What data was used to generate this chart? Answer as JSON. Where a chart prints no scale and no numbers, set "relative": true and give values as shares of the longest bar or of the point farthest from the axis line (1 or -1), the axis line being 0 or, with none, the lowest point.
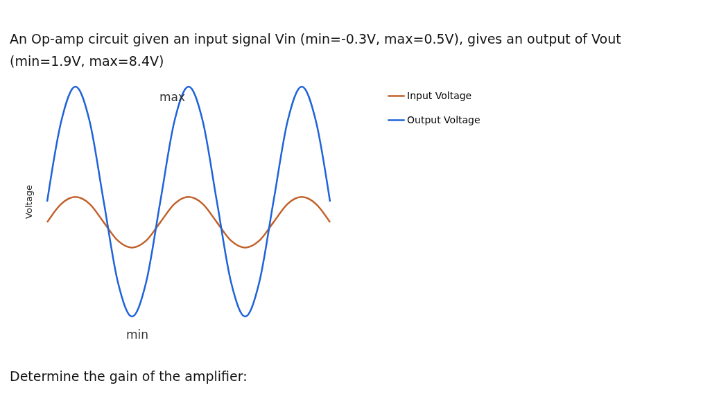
{
  "chart_data": {
    "type": "line",
    "relative": true,
    "title": "An Op-amp circuit given an input signal Vin (min=-0.3V, max=0.5V), gives an output of Vout (min=1.9V, max=8.4V)",
    "ylabel": "Voltage",
    "categories": [
      null,
      null,
      null,
      null,
      null,
      null,
      null,
      null,
      null,
      null,
      null,
      null,
      null,
      null,
      null,
      null,
      null,
      null,
      null,
      null,
      null
    ],
    "series": [
      {
        "name": "Input Voltage",
        "color": "#c0602a",
        "values": [
          0.41,
          0.49,
          0.52,
          0.49,
          0.41,
          0.33,
          0.3,
          0.33,
          0.41,
          0.49,
          0.52,
          0.49,
          0.41,
          0.33,
          0.3,
          0.33,
          0.41,
          0.49,
          0.52,
          0.49,
          0.41
        ]
      },
      {
        "name": "Output Voltage",
        "color": "#1f63d8",
        "values": [
          0.5,
          0.85,
          1,
          0.85,
          0.5,
          0.15,
          0,
          0.15,
          0.5,
          0.85,
          1,
          0.85,
          0.5,
          0.15,
          0,
          0.15,
          0.5,
          0.85,
          1,
          0.85,
          0.5
        ]
      }
    ],
    "legend": "right",
    "grid": false,
    "annotations": [
      "max",
      "min",
      "Determine the gain of the amplifier:"
    ]
  }
}
